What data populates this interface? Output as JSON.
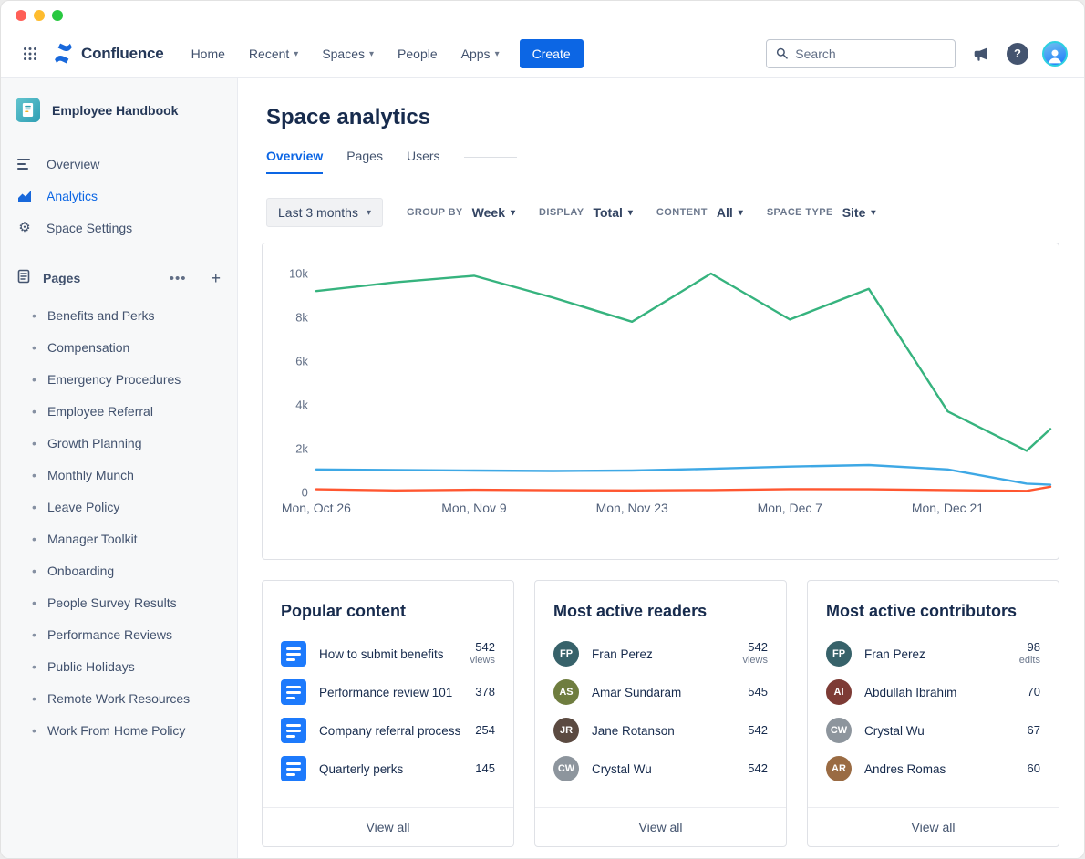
{
  "topnav": {
    "logo": "Confluence",
    "items": [
      {
        "label": "Home",
        "chevron": false
      },
      {
        "label": "Recent",
        "chevron": true
      },
      {
        "label": "Spaces",
        "chevron": true
      },
      {
        "label": "People",
        "chevron": false
      },
      {
        "label": "Apps",
        "chevron": true
      }
    ],
    "create": "Create",
    "search_placeholder": "Search"
  },
  "sidebar": {
    "space": "Employee Handbook",
    "nav": [
      {
        "label": "Overview",
        "icon": "overview",
        "active": false
      },
      {
        "label": "Analytics",
        "icon": "analytics",
        "active": true
      },
      {
        "label": "Space Settings",
        "icon": "settings",
        "active": false
      }
    ],
    "pages_header": "Pages",
    "pages": [
      "Benefits and Perks",
      "Compensation",
      "Emergency Procedures",
      "Employee Referral",
      "Growth Planning",
      "Monthly Munch",
      "Leave Policy",
      "Manager Toolkit",
      "Onboarding",
      "People Survey Results",
      "Performance Reviews",
      "Public Holidays",
      "Remote Work Resources",
      "Work From Home Policy"
    ]
  },
  "main": {
    "title": "Space analytics",
    "tabs": [
      {
        "label": "Overview",
        "active": true
      },
      {
        "label": "Pages",
        "active": false
      },
      {
        "label": "Users",
        "active": false
      }
    ],
    "filters": {
      "range": "Last 3 months",
      "groups": [
        {
          "label": "GROUP BY",
          "value": "Week"
        },
        {
          "label": "DISPLAY",
          "value": "Total"
        },
        {
          "label": "CONTENT",
          "value": "All"
        },
        {
          "label": "SPACE TYPE",
          "value": "Site"
        }
      ]
    }
  },
  "chart_data": {
    "type": "line",
    "ylim": [
      0,
      10000
    ],
    "y_ticks": [
      "0",
      "2k",
      "4k",
      "6k",
      "8k",
      "10k"
    ],
    "x_tick_labels": [
      "Mon, Oct 26",
      "Mon, Nov 9",
      "Mon, Nov 23",
      "Mon, Dec 7",
      "Mon, Dec 21"
    ],
    "x_tick_weeks": [
      0,
      2,
      4,
      6,
      8
    ],
    "x_weeks": [
      0,
      1,
      2,
      3,
      4,
      5,
      6,
      7,
      8,
      9,
      9.3
    ],
    "x_max_week": 9.3,
    "grid": false,
    "legend": "none",
    "series": [
      {
        "name": "green",
        "color": "#36b37e",
        "values": [
          9200,
          9600,
          9900,
          8900,
          7800,
          10000,
          7900,
          9300,
          3700,
          1900,
          2900
        ]
      },
      {
        "name": "blue",
        "color": "#3ea8e5",
        "values": [
          1050,
          1020,
          1000,
          980,
          1000,
          1080,
          1180,
          1250,
          1050,
          400,
          350
        ]
      },
      {
        "name": "red",
        "color": "#ff5630",
        "values": [
          140,
          90,
          120,
          100,
          90,
          110,
          150,
          140,
          110,
          70,
          260
        ]
      }
    ]
  },
  "cards": [
    {
      "title": "Popular content",
      "footer": "View all",
      "items": [
        {
          "icon": "doc",
          "label": "How to submit benefits",
          "value": "542",
          "unit": "views"
        },
        {
          "icon": "doc",
          "label": "Performance review 101",
          "value": "378",
          "unit": ""
        },
        {
          "icon": "doc",
          "label": "Company referral process",
          "value": "254",
          "unit": ""
        },
        {
          "icon": "doc",
          "label": "Quarterly perks",
          "value": "145",
          "unit": ""
        }
      ]
    },
    {
      "title": "Most active readers",
      "footer": "View all",
      "items": [
        {
          "icon": "avatar",
          "color": "#37626a",
          "initials": "FP",
          "label": "Fran Perez",
          "value": "542",
          "unit": "views"
        },
        {
          "icon": "avatar",
          "color": "#6f7d3f",
          "initials": "AS",
          "label": "Amar Sundaram",
          "value": "545",
          "unit": ""
        },
        {
          "icon": "avatar",
          "color": "#5b4a41",
          "initials": "JR",
          "label": "Jane Rotanson",
          "value": "542",
          "unit": ""
        },
        {
          "icon": "avatar",
          "color": "#8d959d",
          "initials": "CW",
          "label": "Crystal Wu",
          "value": "542",
          "unit": ""
        }
      ]
    },
    {
      "title": "Most active contributors",
      "footer": "View all",
      "items": [
        {
          "icon": "avatar",
          "color": "#37626a",
          "initials": "FP",
          "label": "Fran Perez",
          "value": "98",
          "unit": "edits"
        },
        {
          "icon": "avatar",
          "color": "#7d3b35",
          "initials": "AI",
          "label": "Abdullah Ibrahim",
          "value": "70",
          "unit": ""
        },
        {
          "icon": "avatar",
          "color": "#8d959d",
          "initials": "CW",
          "label": "Crystal Wu",
          "value": "67",
          "unit": ""
        },
        {
          "icon": "avatar",
          "color": "#9a6b43",
          "initials": "AR",
          "label": "Andres Romas",
          "value": "60",
          "unit": ""
        }
      ]
    }
  ]
}
